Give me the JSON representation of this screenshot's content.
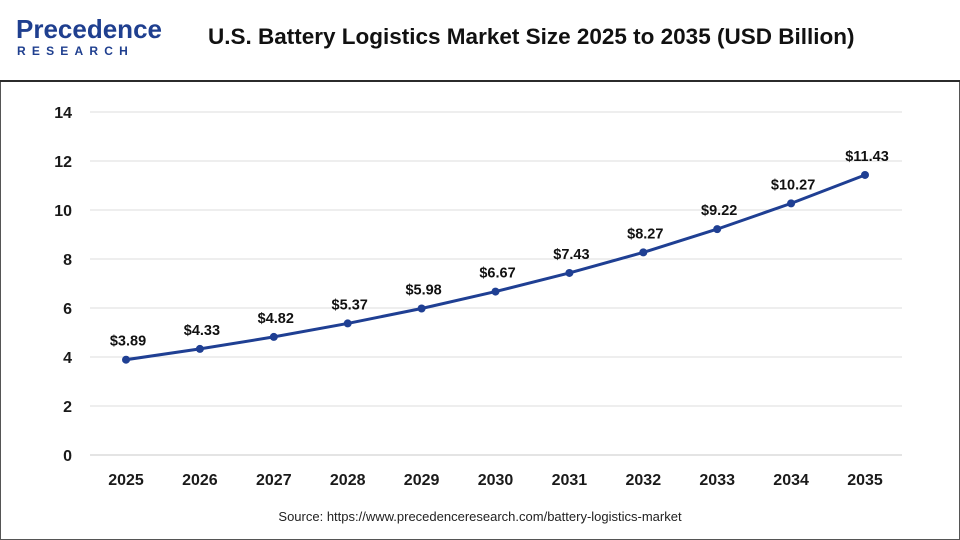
{
  "brand": {
    "logo_main": "Precedence",
    "logo_sub": "RESEARCH"
  },
  "source_text": "Source: https://www.precedenceresearch.com/battery-logistics-market",
  "colors": {
    "line": "#1f3f93",
    "brand": "#1f3f8f",
    "grid": "#dedede"
  },
  "chart_data": {
    "type": "line",
    "title": "U.S. Battery Logistics Market Size 2025 to 2035 (USD Billion)",
    "xlabel": "",
    "ylabel": "",
    "categories": [
      "2025",
      "2026",
      "2027",
      "2028",
      "2029",
      "2030",
      "2031",
      "2032",
      "2033",
      "2034",
      "2035"
    ],
    "series": [
      {
        "values": [
          3.89,
          4.33,
          4.82,
          5.37,
          5.98,
          6.67,
          7.43,
          8.27,
          9.22,
          10.27,
          11.43
        ],
        "labels": [
          "$3.89",
          "$4.33",
          "$4.82",
          "$5.37",
          "$5.98",
          "$6.67",
          "$7.43",
          "$8.27",
          "$9.22",
          "$10.27",
          "$11.43"
        ]
      }
    ],
    "ylim": [
      0,
      14
    ],
    "yticks": [
      "0",
      "2",
      "4",
      "6",
      "8",
      "10",
      "12",
      "14"
    ],
    "grid": "horizontal",
    "legend": "none"
  }
}
